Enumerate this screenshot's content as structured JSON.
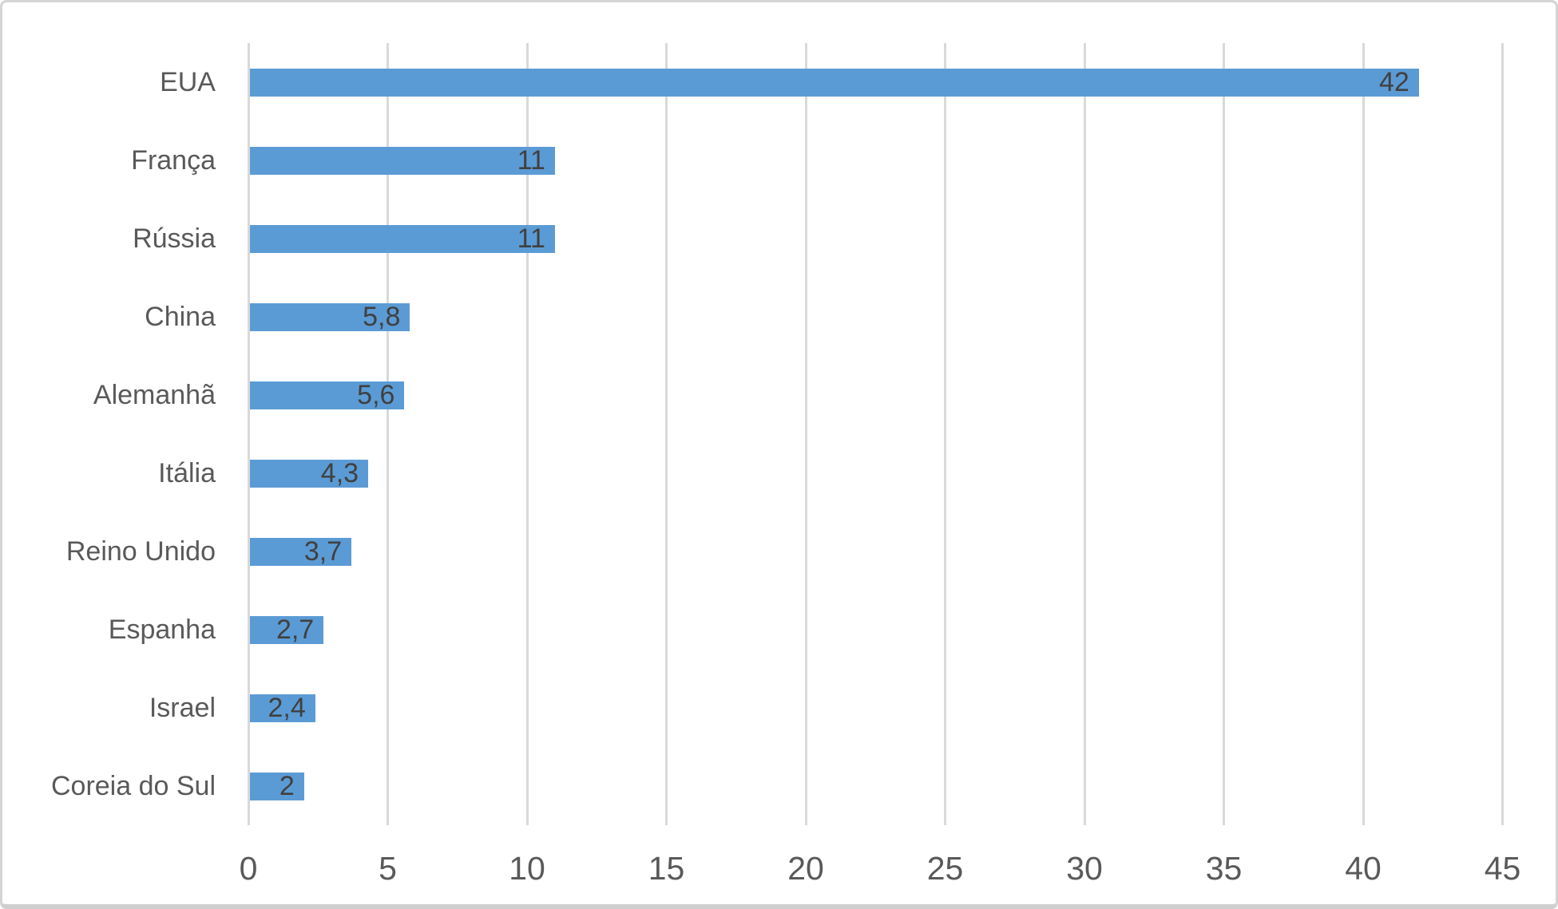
{
  "chart_data": {
    "type": "bar",
    "orientation": "horizontal",
    "title": "",
    "xlabel": "",
    "ylabel": "",
    "categories": [
      "EUA",
      "França",
      "Rússia",
      "China",
      "Alemanhã",
      "Itália",
      "Reino Unido",
      "Espanha",
      "Israel",
      "Coreia do Sul"
    ],
    "values": [
      42,
      11,
      11,
      5.8,
      5.6,
      4.3,
      3.7,
      2.7,
      2.4,
      2
    ],
    "value_labels": [
      "42",
      "11",
      "11",
      "5,8",
      "5,6",
      "4,3",
      "3,7",
      "2,7",
      "2,4",
      "2"
    ],
    "xlim": [
      0,
      45
    ],
    "x_ticks": [
      0,
      5,
      10,
      15,
      20,
      25,
      30,
      35,
      40,
      45
    ],
    "x_tick_labels": [
      "0",
      "5",
      "10",
      "15",
      "20",
      "25",
      "30",
      "35",
      "40",
      "45"
    ],
    "grid": true,
    "legend": false,
    "data_labels_position": "inside-end",
    "colors": {
      "bar": "#5b9bd5",
      "value_label": "#404040",
      "axis_text": "#595959",
      "gridline": "#d9d9d9",
      "background": "#ffffff",
      "frame_border": "#d4d4d4"
    }
  }
}
